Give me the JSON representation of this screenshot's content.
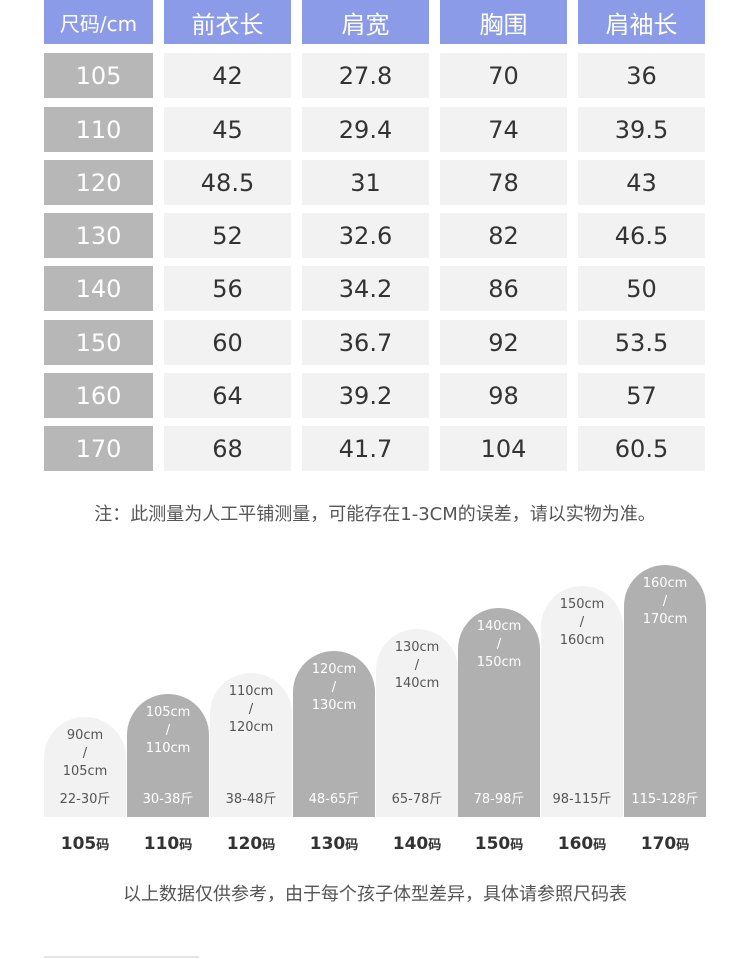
{
  "table": {
    "headers": [
      "尺码/cm",
      "前衣长",
      "肩宽",
      "胸围",
      "肩袖长"
    ],
    "rows": [
      [
        "105",
        "42",
        "27.8",
        "70",
        "36"
      ],
      [
        "110",
        "45",
        "29.4",
        "74",
        "39.5"
      ],
      [
        "120",
        "48.5",
        "31",
        "78",
        "43"
      ],
      [
        "130",
        "52",
        "32.6",
        "82",
        "46.5"
      ],
      [
        "140",
        "56",
        "34.2",
        "86",
        "50"
      ],
      [
        "150",
        "60",
        "36.7",
        "92",
        "53.5"
      ],
      [
        "160",
        "64",
        "39.2",
        "98",
        "57"
      ],
      [
        "170",
        "68",
        "41.7",
        "104",
        "60.5"
      ]
    ]
  },
  "note": "注：此测量为人工平铺测量，可能存在1-3CM的误差，请以实物为准。",
  "size_reference": [
    {
      "height": [
        "90cm",
        "/",
        "105cm"
      ],
      "weight": "22-30斤",
      "size": "105",
      "unit": "码",
      "tone": "light"
    },
    {
      "height": [
        "105cm",
        "/",
        "110cm"
      ],
      "weight": "30-38斤",
      "size": "110",
      "unit": "码",
      "tone": "dark"
    },
    {
      "height": [
        "110cm",
        "/",
        "120cm"
      ],
      "weight": "38-48斤",
      "size": "120",
      "unit": "码",
      "tone": "light"
    },
    {
      "height": [
        "120cm",
        "/",
        "130cm"
      ],
      "weight": "48-65斤",
      "size": "130",
      "unit": "码",
      "tone": "dark"
    },
    {
      "height": [
        "130cm",
        "/",
        "140cm"
      ],
      "weight": "65-78斤",
      "size": "140",
      "unit": "码",
      "tone": "light"
    },
    {
      "height": [
        "140cm",
        "/",
        "150cm"
      ],
      "weight": "78-98斤",
      "size": "150",
      "unit": "码",
      "tone": "dark"
    },
    {
      "height": [
        "150cm",
        "/",
        "160cm"
      ],
      "weight": "98-115斤",
      "size": "160",
      "unit": "码",
      "tone": "light"
    },
    {
      "height": [
        "160cm",
        "/",
        "170cm"
      ],
      "weight": "115-128斤",
      "size": "170",
      "unit": "码",
      "tone": "dark"
    }
  ],
  "footer_note": "以上数据仅供参考，由于每个孩子体型差异，具体请参照尺码表",
  "colors": {
    "header_bg": "#8b9be8",
    "size_cell_bg": "#b7b7b7",
    "value_cell_bg": "#f2f2f2",
    "bar_dark": "#b0b0b0",
    "bar_light": "#f2f2f2"
  }
}
